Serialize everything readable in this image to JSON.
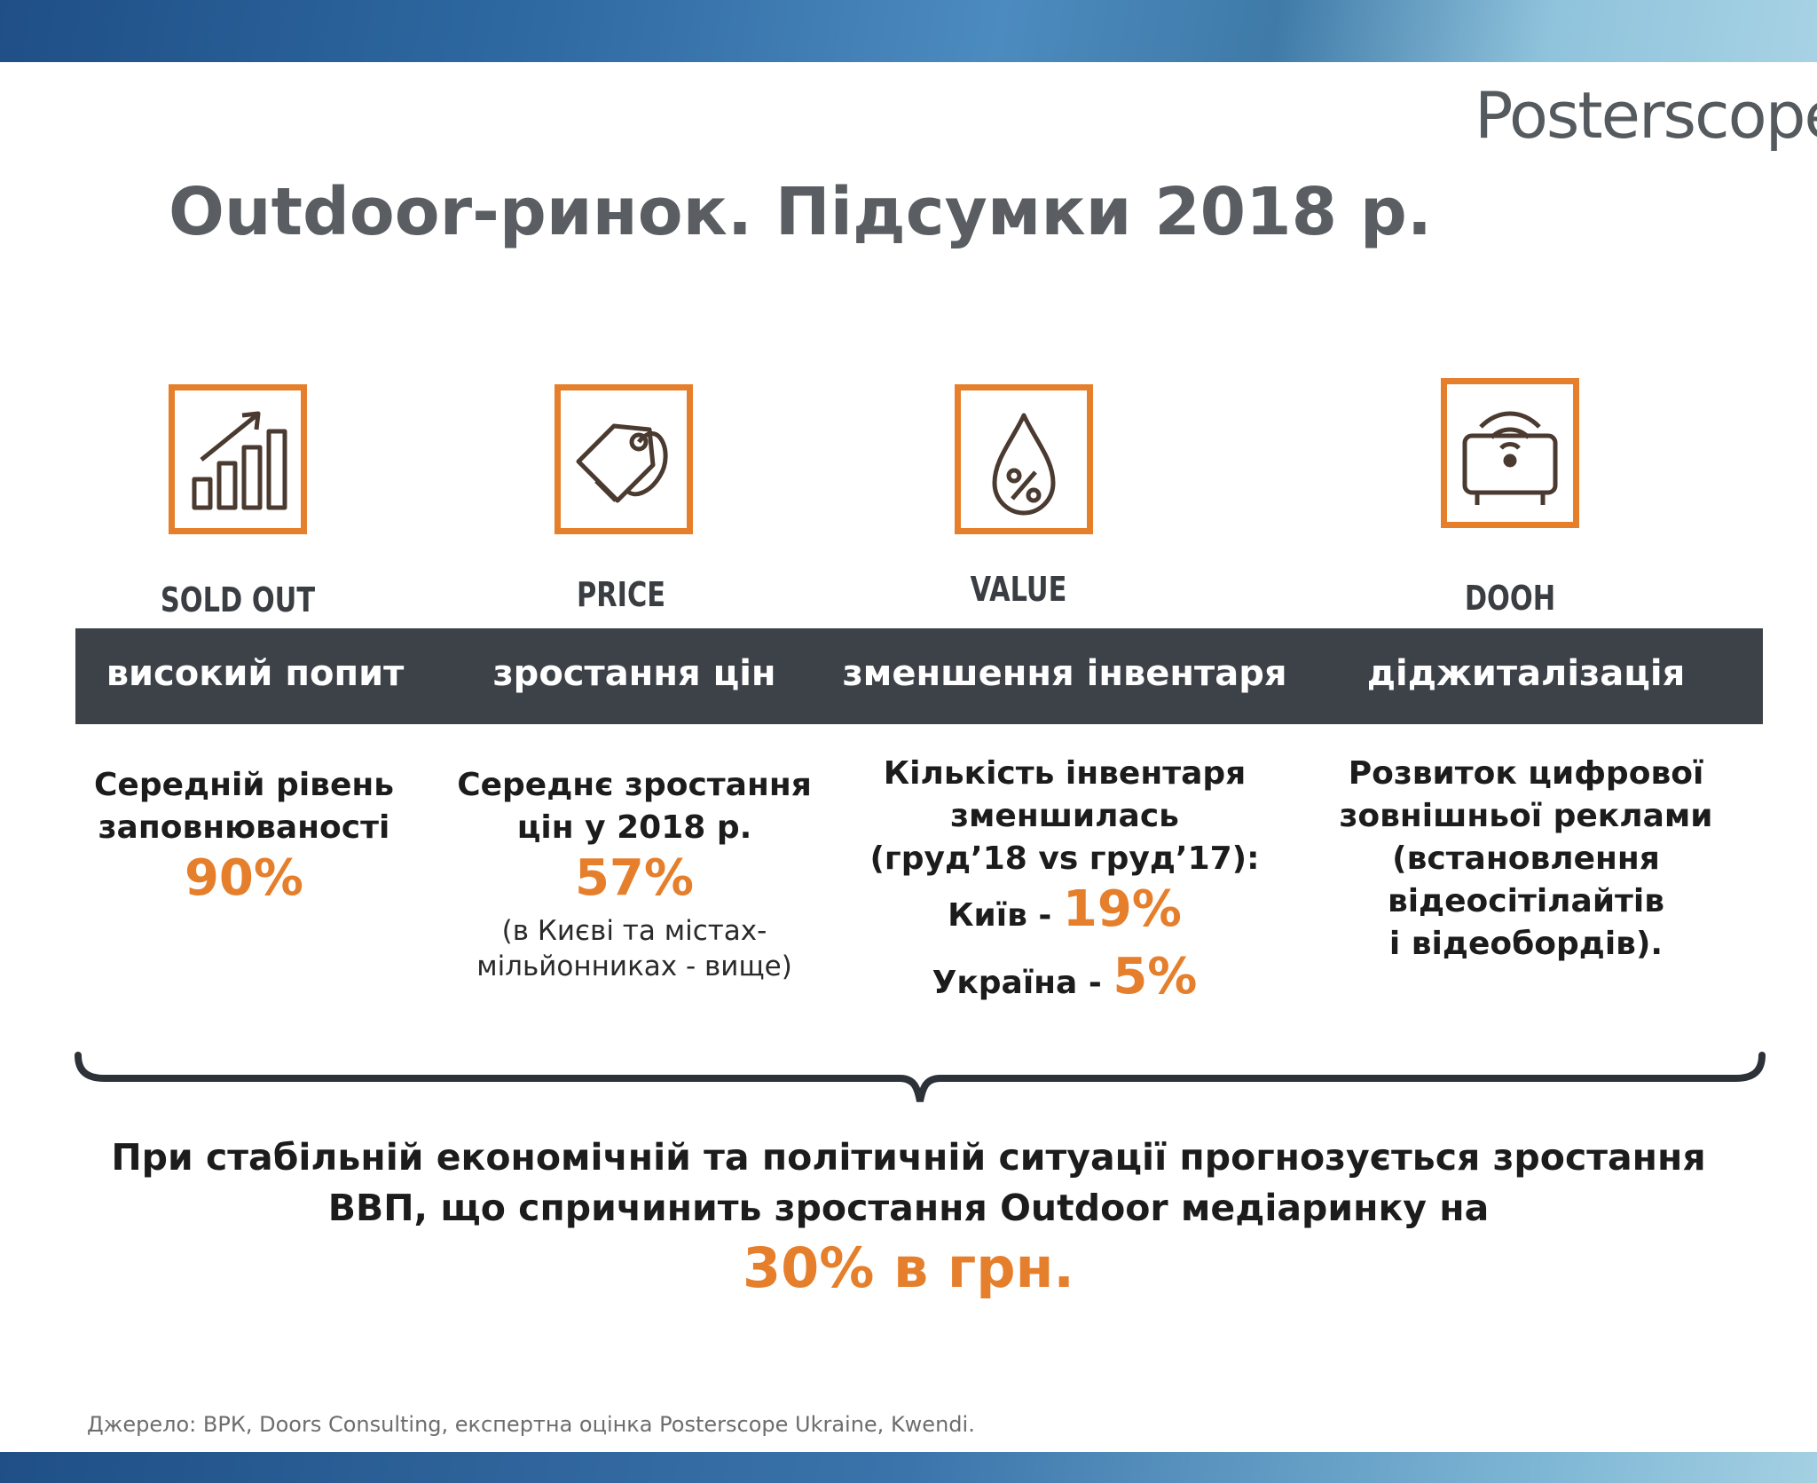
{
  "brand": {
    "logo_text": "Posterscope",
    "accent_color": "#e57f2c",
    "bar_color": "#3d4249"
  },
  "title": "Outdoor-ринок. Підсумки 2018 р.",
  "icons": [
    {
      "icon": "rising-bar-chart-icon",
      "caption": "SOLD OUT"
    },
    {
      "icon": "price-tag-icon",
      "caption": "PRICE"
    },
    {
      "icon": "percent-drop-icon",
      "caption": "VALUE"
    },
    {
      "icon": "digital-screen-wifi-icon",
      "caption": "DOOH"
    }
  ],
  "bar_labels": [
    "високий попит",
    "зростання цін",
    "зменшення інвентаря",
    "діджиталізація"
  ],
  "col1": {
    "line1": "Середній рівень",
    "line2": "заповнюваності",
    "value": "90%"
  },
  "col2": {
    "line1": "Середнє зростання",
    "line2": "цін у 2018 р.",
    "value": "57%",
    "note1": "(в Києві та містах-",
    "note2": "мільйонниках - вище)"
  },
  "col3": {
    "line1": "Кількість інвентаря",
    "line2": "зменшилась",
    "line3": "(груд’18 vs груд’17):",
    "kyiv_label": "Київ - ",
    "kyiv_value": "19%",
    "ukraine_label": "Україна - ",
    "ukraine_value": "5%"
  },
  "col4": {
    "line1": "Розвиток цифрової",
    "line2": "зовнішньої реклами",
    "line3": "(встановлення відеосітілайтів",
    "line4": "і відеобордів)."
  },
  "conclusion": {
    "line1": "При стабільній економічній та політичній ситуації прогнозується зростання",
    "line2": "ВВП, що спричинить зростання Outdoor медіаринку на",
    "highlight": "30% в грн."
  },
  "source": "Джерело: ВРК, Doors Consulting, експертна оцінка Posterscope Ukraine, Kwendi."
}
